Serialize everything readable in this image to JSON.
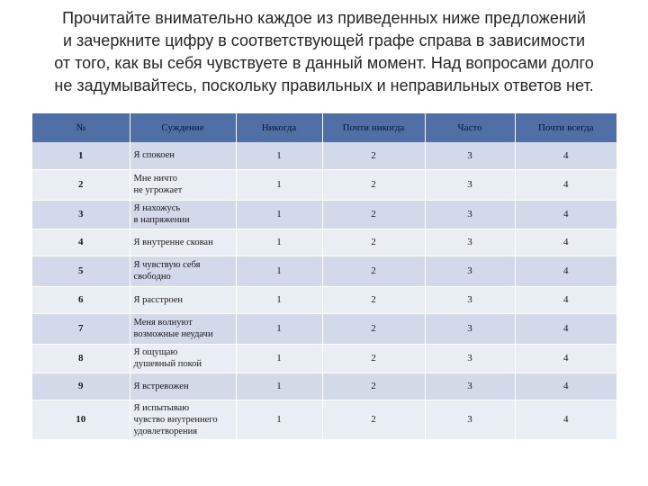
{
  "instructions": [
    "Прочитайте внимательно каждое из приведенных ниже предложений",
    "и зачеркните цифру в соответствующей графе справа в зависимости",
    "от  того, как вы себя чувствуете в данный момент. Над вопросами долго",
    "не задумывайтесь, поскольку правильных и неправильных ответов нет."
  ],
  "table": {
    "headers": [
      "№",
      "Суждение",
      "Никогда",
      "Почти никогда",
      "Часто",
      "Почти всегда"
    ],
    "rows": [
      {
        "num": "1",
        "statement": [
          "Я спокоен"
        ],
        "values": [
          "1",
          "2",
          "3",
          "4"
        ]
      },
      {
        "num": "2",
        "statement": [
          "Мне ничто",
          "не угрожает"
        ],
        "values": [
          "1",
          "2",
          "3",
          "4"
        ]
      },
      {
        "num": "3",
        "statement": [
          "Я нахожусь",
          "в напряжении"
        ],
        "values": [
          "1",
          "2",
          "3",
          "4"
        ]
      },
      {
        "num": "4",
        "statement": [
          "Я внутренне скован"
        ],
        "values": [
          "1",
          "2",
          "3",
          "4"
        ]
      },
      {
        "num": "5",
        "statement": [
          "Я чувствую себя",
          "свободно"
        ],
        "values": [
          "1",
          "2",
          "3",
          "4"
        ]
      },
      {
        "num": "6",
        "statement": [
          "Я расстроен"
        ],
        "values": [
          "1",
          "2",
          "3",
          "4"
        ]
      },
      {
        "num": "7",
        "statement": [
          "Меня волнуют",
          "возможные неудачи"
        ],
        "values": [
          "1",
          "2",
          "3",
          "4"
        ]
      },
      {
        "num": "8",
        "statement": [
          "Я ощущаю",
          "душевный покой"
        ],
        "values": [
          "1",
          "2",
          "3",
          "4"
        ]
      },
      {
        "num": "9",
        "statement": [
          "Я встревожен"
        ],
        "values": [
          "1",
          "2",
          "3",
          "4"
        ]
      },
      {
        "num": "10",
        "statement": [
          "Я испытываю",
          "чувство внутреннего",
          "удовлетворения"
        ],
        "values": [
          "1",
          "2",
          "3",
          "4"
        ]
      }
    ]
  },
  "colors": {
    "header_bg": "#4f6fa6",
    "row_dark": "#d2d9e9",
    "row_light": "#e9edf4"
  }
}
